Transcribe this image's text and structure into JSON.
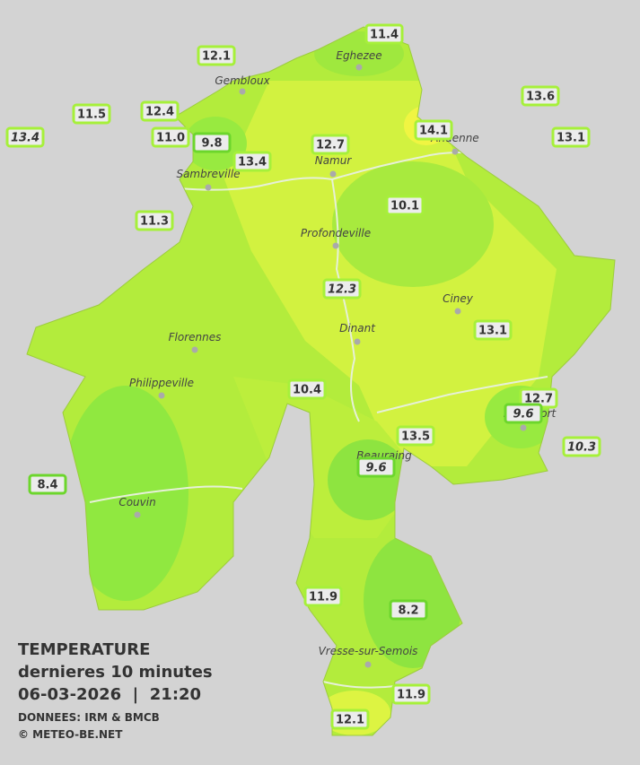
{
  "title": {
    "line1": "TEMPERATURE",
    "line2": "dernieres 10 minutes",
    "line3": "06-03-2026  |  21:20",
    "source": "DONNEES: IRM & BMCB",
    "copyright": "© METEO-BE.NET"
  },
  "towns": [
    "Eghezee",
    "Gembloux",
    "Andenne",
    "Namur",
    "Sambreville",
    "Profondeville",
    "Ciney",
    "Dinant",
    "Florennes",
    "Philippeville",
    "Rochefort",
    "Beauraing",
    "Couvin",
    "Vresse-sur-Semois"
  ],
  "stations": [
    {
      "label": "11.4"
    },
    {
      "label": "12.1"
    },
    {
      "label": "13.6"
    },
    {
      "label": "11.5"
    },
    {
      "label": "12.4"
    },
    {
      "label": "13.4",
      "italic": true
    },
    {
      "label": "11.0"
    },
    {
      "label": "9.8"
    },
    {
      "label": "14.1"
    },
    {
      "label": "12.7"
    },
    {
      "label": "13.1"
    },
    {
      "label": "13.4"
    },
    {
      "label": "10.1"
    },
    {
      "label": "11.3"
    },
    {
      "label": "12.3",
      "italic": true
    },
    {
      "label": "13.1"
    },
    {
      "label": "10.4"
    },
    {
      "label": "12.7"
    },
    {
      "label": "9.6",
      "italic": true
    },
    {
      "label": "13.5"
    },
    {
      "label": "10.3",
      "italic": true
    },
    {
      "label": "9.6",
      "italic": true
    },
    {
      "label": "8.4"
    },
    {
      "label": "11.9"
    },
    {
      "label": "8.2"
    },
    {
      "label": "11.9"
    },
    {
      "label": "12.1"
    }
  ]
}
